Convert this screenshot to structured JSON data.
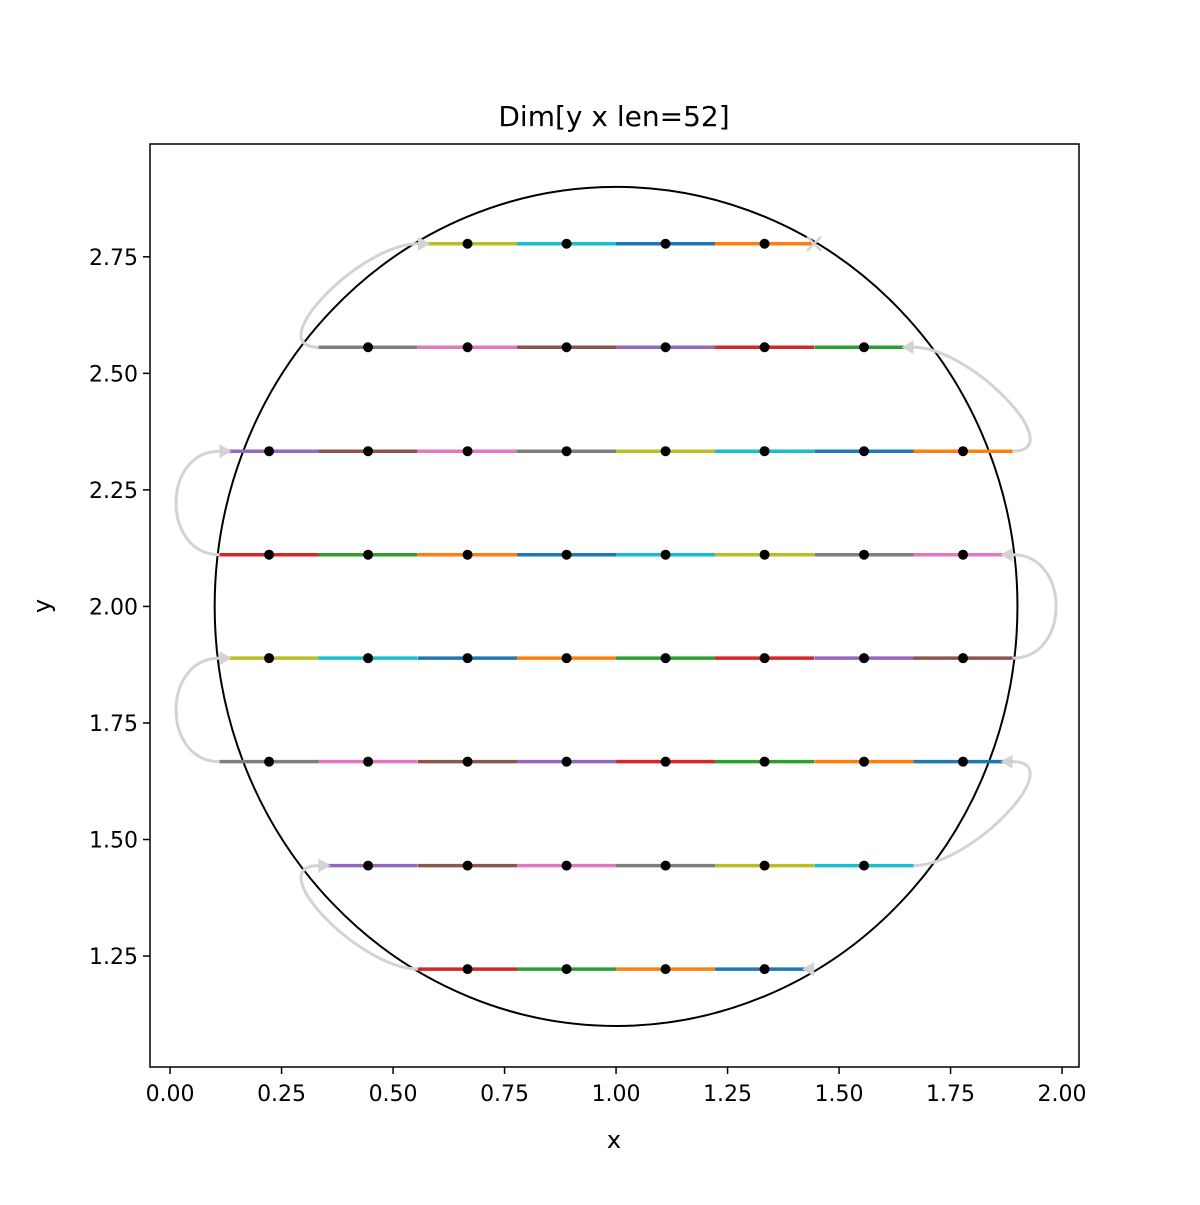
{
  "chart_data": {
    "type": "line",
    "title": "Dim[y x len=52]",
    "xlabel": "x",
    "ylabel": "y",
    "xlim": [
      -0.045,
      2.038
    ],
    "ylim": [
      1.012,
      2.992
    ],
    "xticks": [
      "0.00",
      "0.25",
      "0.50",
      "0.75",
      "1.00",
      "1.25",
      "1.50",
      "1.75",
      "2.00"
    ],
    "yticks": [
      "1.25",
      "1.50",
      "1.75",
      "2.00",
      "2.25",
      "2.50",
      "2.75"
    ],
    "grid": false,
    "circle": {
      "center": [
        1.0,
        2.0
      ],
      "radius": 0.9,
      "color": "#000000"
    },
    "segment_width": 0.2222,
    "palette": [
      "#1f77b4",
      "#ff7f0e",
      "#2ca02c",
      "#d62728",
      "#9467bd",
      "#8c564b",
      "#e377c2",
      "#7f7f7f",
      "#bcbd22",
      "#17becf"
    ],
    "connector_color": "#d3d3d3",
    "point_color": "#000000",
    "start_marker": "triangle",
    "end_marker": "x",
    "rows": [
      {
        "y": 1.222,
        "x": [
          1.333,
          1.111,
          0.889,
          0.667
        ]
      },
      {
        "y": 1.444,
        "x": [
          0.444,
          0.667,
          0.889,
          1.111,
          1.333,
          1.556
        ]
      },
      {
        "y": 1.667,
        "x": [
          1.778,
          1.556,
          1.333,
          1.111,
          0.889,
          0.667,
          0.444,
          0.222
        ]
      },
      {
        "y": 1.889,
        "x": [
          0.222,
          0.444,
          0.667,
          0.889,
          1.111,
          1.333,
          1.556,
          1.778
        ]
      },
      {
        "y": 2.111,
        "x": [
          1.778,
          1.556,
          1.333,
          1.111,
          0.889,
          0.667,
          0.444,
          0.222
        ]
      },
      {
        "y": 2.333,
        "x": [
          0.222,
          0.444,
          0.667,
          0.889,
          1.111,
          1.333,
          1.556,
          1.778
        ]
      },
      {
        "y": 2.556,
        "x": [
          1.556,
          1.333,
          1.111,
          0.889,
          0.667,
          0.444
        ]
      },
      {
        "y": 2.778,
        "x": [
          0.667,
          0.889,
          1.111,
          1.333
        ]
      }
    ]
  }
}
